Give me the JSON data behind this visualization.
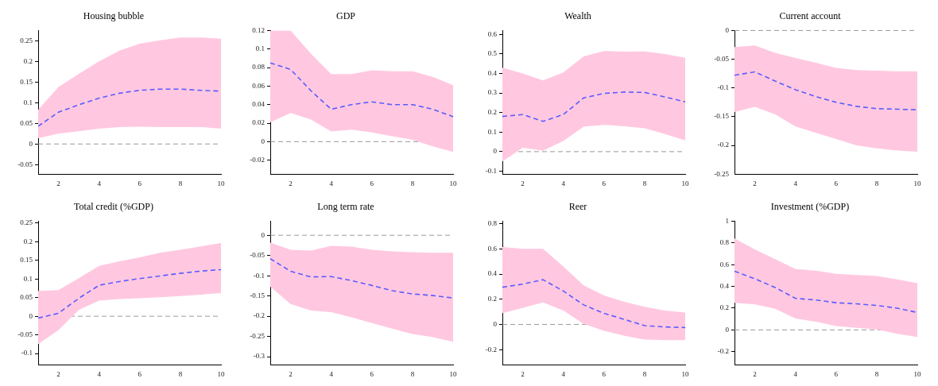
{
  "chart_data": [
    {
      "type": "line",
      "title": "Housing bubble",
      "x": [
        1,
        2,
        3,
        4,
        5,
        6,
        7,
        8,
        9,
        10
      ],
      "xlim": [
        1,
        10
      ],
      "xticks": [
        2,
        4,
        6,
        8,
        10
      ],
      "ylim": [
        -0.073,
        0.275
      ],
      "yticks": [
        -0.05,
        0,
        0.05,
        0.1,
        0.15,
        0.2,
        0.25
      ],
      "line_style": "dashed",
      "ref_lines": [
        {
          "axis": "y",
          "value": 0,
          "color": "#999999",
          "line_style": "dashed"
        }
      ],
      "series": [
        {
          "color": "#5b5bff",
          "values": [
            0.043,
            0.077,
            0.095,
            0.111,
            0.123,
            0.13,
            0.133,
            0.133,
            0.13,
            0.128
          ],
          "lower": [
            0.014,
            0.025,
            0.031,
            0.037,
            0.041,
            0.042,
            0.041,
            0.041,
            0.041,
            0.037
          ],
          "upper": [
            0.083,
            0.138,
            0.17,
            0.2,
            0.226,
            0.243,
            0.251,
            0.258,
            0.258,
            0.255
          ]
        }
      ]
    },
    {
      "type": "line",
      "title": "GDP",
      "x": [
        1,
        2,
        3,
        4,
        5,
        6,
        7,
        8,
        9,
        10
      ],
      "xlim": [
        1,
        10
      ],
      "xticks": [
        2,
        4,
        6,
        8,
        10
      ],
      "ylim": [
        -0.035,
        0.12
      ],
      "yticks": [
        -0.02,
        0,
        0.02,
        0.04,
        0.06,
        0.08,
        0.1,
        0.12
      ],
      "line_style": "dashed",
      "ref_lines": [
        {
          "axis": "y",
          "value": 0,
          "color": "#999999",
          "line_style": "dashed"
        }
      ],
      "series": [
        {
          "color": "#5b5bff",
          "values": [
            0.085,
            0.078,
            0.055,
            0.035,
            0.04,
            0.043,
            0.04,
            0.04,
            0.035,
            0.027
          ],
          "lower": [
            0.021,
            0.031,
            0.024,
            0.011,
            0.013,
            0.01,
            0.006,
            0.002,
            -0.005,
            -0.011
          ],
          "upper": [
            0.12,
            0.12,
            0.095,
            0.073,
            0.073,
            0.077,
            0.076,
            0.076,
            0.07,
            0.061
          ]
        }
      ]
    },
    {
      "type": "line",
      "title": "Wealth",
      "x": [
        1,
        2,
        3,
        4,
        5,
        6,
        7,
        8,
        9,
        10
      ],
      "xlim": [
        1,
        10
      ],
      "xticks": [
        2,
        4,
        6,
        8,
        10
      ],
      "ylim": [
        -0.115,
        0.62
      ],
      "yticks": [
        -0.1,
        0,
        0.1,
        0.2,
        0.3,
        0.4,
        0.5,
        0.6
      ],
      "line_style": "dashed",
      "ref_lines": [
        {
          "axis": "y",
          "value": 0,
          "color": "#999999",
          "line_style": "dashed"
        }
      ],
      "series": [
        {
          "color": "#5b5bff",
          "values": [
            0.18,
            0.19,
            0.155,
            0.19,
            0.275,
            0.298,
            0.305,
            0.303,
            0.28,
            0.255
          ],
          "lower": [
            -0.05,
            0.02,
            0.005,
            0.055,
            0.128,
            0.137,
            0.13,
            0.12,
            0.09,
            0.058
          ],
          "upper": [
            0.43,
            0.4,
            0.365,
            0.405,
            0.487,
            0.515,
            0.512,
            0.513,
            0.5,
            0.48
          ]
        }
      ]
    },
    {
      "type": "line",
      "title": "Current account",
      "x": [
        1,
        2,
        3,
        4,
        5,
        6,
        7,
        8,
        9,
        10
      ],
      "xlim": [
        1,
        10
      ],
      "xticks": [
        2,
        4,
        6,
        8,
        10
      ],
      "ylim": [
        -0.25,
        0
      ],
      "yticks": [
        -0.25,
        -0.2,
        -0.15,
        -0.1,
        -0.05,
        0
      ],
      "line_style": "dashed",
      "ref_lines": [
        {
          "axis": "y",
          "value": 0,
          "color": "#999999",
          "line_style": "dashed"
        }
      ],
      "series": [
        {
          "color": "#5b5bff",
          "values": [
            -0.078,
            -0.072,
            -0.088,
            -0.103,
            -0.115,
            -0.125,
            -0.132,
            -0.136,
            -0.137,
            -0.138
          ],
          "lower": [
            -0.142,
            -0.133,
            -0.146,
            -0.167,
            -0.178,
            -0.189,
            -0.2,
            -0.205,
            -0.209,
            -0.211
          ],
          "upper": [
            -0.029,
            -0.026,
            -0.039,
            -0.048,
            -0.056,
            -0.065,
            -0.069,
            -0.07,
            -0.071,
            -0.071
          ]
        }
      ]
    },
    {
      "type": "line",
      "title": "Total credit (%GDP)",
      "x": [
        1,
        2,
        3,
        4,
        5,
        6,
        7,
        8,
        9,
        10
      ],
      "xlim": [
        1,
        10
      ],
      "xticks": [
        2,
        4,
        6,
        8,
        10
      ],
      "ylim": [
        -0.13,
        0.255
      ],
      "yticks": [
        -0.1,
        -0.05,
        0,
        0.05,
        0.1,
        0.15,
        0.2,
        0.25
      ],
      "line_style": "dashed",
      "ref_lines": [
        {
          "axis": "y",
          "value": 0,
          "color": "#999999",
          "line_style": "dashed"
        }
      ],
      "series": [
        {
          "color": "#5b5bff",
          "values": [
            -0.005,
            0.008,
            0.048,
            0.083,
            0.093,
            0.101,
            0.108,
            0.115,
            0.121,
            0.125
          ],
          "lower": [
            -0.075,
            -0.037,
            0.017,
            0.042,
            0.046,
            0.048,
            0.051,
            0.054,
            0.058,
            0.062
          ],
          "upper": [
            0.068,
            0.07,
            0.102,
            0.135,
            0.147,
            0.158,
            0.17,
            0.178,
            0.187,
            0.196
          ]
        }
      ]
    },
    {
      "type": "line",
      "title": "Long term rate",
      "x": [
        1,
        2,
        3,
        4,
        5,
        6,
        7,
        8,
        9,
        10
      ],
      "xlim": [
        1,
        10
      ],
      "xticks": [
        2,
        4,
        6,
        8,
        10
      ],
      "ylim": [
        -0.32,
        0.035
      ],
      "yticks": [
        -0.3,
        -0.25,
        -0.2,
        -0.15,
        -0.1,
        -0.05,
        0
      ],
      "line_style": "dashed",
      "ref_lines": [
        {
          "axis": "y",
          "value": 0,
          "color": "#999999",
          "line_style": "dashed"
        }
      ],
      "series": [
        {
          "color": "#5b5bff",
          "values": [
            -0.058,
            -0.089,
            -0.103,
            -0.102,
            -0.112,
            -0.124,
            -0.137,
            -0.145,
            -0.149,
            -0.155
          ],
          "lower": [
            -0.127,
            -0.17,
            -0.186,
            -0.19,
            -0.203,
            -0.217,
            -0.231,
            -0.244,
            -0.252,
            -0.263
          ],
          "upper": [
            -0.018,
            -0.036,
            -0.038,
            -0.026,
            -0.028,
            -0.036,
            -0.04,
            -0.042,
            -0.043,
            -0.043
          ]
        }
      ]
    },
    {
      "type": "line",
      "title": "Reer",
      "x": [
        1,
        2,
        3,
        4,
        5,
        6,
        7,
        8,
        9,
        10
      ],
      "xlim": [
        1,
        10
      ],
      "xticks": [
        2,
        4,
        6,
        8,
        10
      ],
      "ylim": [
        -0.32,
        0.82
      ],
      "yticks": [
        -0.2,
        0,
        0.2,
        0.4,
        0.6,
        0.8
      ],
      "line_style": "dashed",
      "ref_lines": [
        {
          "axis": "y",
          "value": 0,
          "color": "#999999",
          "line_style": "dashed"
        }
      ],
      "series": [
        {
          "color": "#5b5bff",
          "values": [
            0.295,
            0.32,
            0.355,
            0.265,
            0.155,
            0.088,
            0.04,
            -0.01,
            -0.02,
            -0.025
          ],
          "lower": [
            0.09,
            0.13,
            0.175,
            0.11,
            0.005,
            -0.05,
            -0.09,
            -0.12,
            -0.125,
            -0.125
          ],
          "upper": [
            0.615,
            0.6,
            0.6,
            0.46,
            0.31,
            0.23,
            0.18,
            0.14,
            0.11,
            0.095
          ]
        }
      ]
    },
    {
      "type": "line",
      "title": "Investment (%GDP)",
      "x": [
        1,
        2,
        3,
        4,
        5,
        6,
        7,
        8,
        9,
        10
      ],
      "xlim": [
        1,
        10
      ],
      "xticks": [
        2,
        4,
        6,
        8,
        10
      ],
      "ylim": [
        -0.32,
        1
      ],
      "yticks": [
        -0.2,
        0,
        0.2,
        0.4,
        0.6,
        0.8,
        1
      ],
      "line_style": "dashed",
      "ref_lines": [
        {
          "axis": "y",
          "value": 0,
          "color": "#999999",
          "line_style": "dashed"
        }
      ],
      "series": [
        {
          "color": "#5b5bff",
          "values": [
            0.54,
            0.47,
            0.39,
            0.29,
            0.275,
            0.25,
            0.24,
            0.225,
            0.2,
            0.16
          ],
          "lower": [
            0.25,
            0.235,
            0.195,
            0.105,
            0.075,
            0.035,
            0.02,
            0.005,
            -0.035,
            -0.065
          ],
          "upper": [
            0.84,
            0.74,
            0.65,
            0.56,
            0.545,
            0.515,
            0.505,
            0.495,
            0.465,
            0.43
          ]
        }
      ]
    }
  ]
}
